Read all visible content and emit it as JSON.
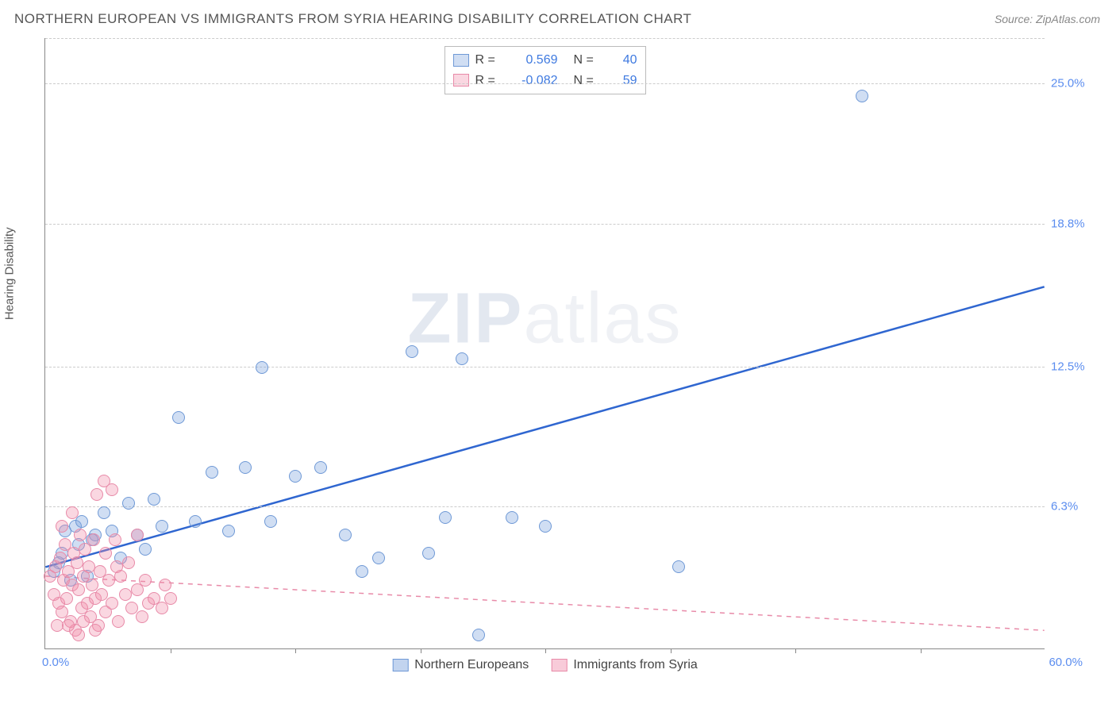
{
  "header": {
    "title": "NORTHERN EUROPEAN VS IMMIGRANTS FROM SYRIA HEARING DISABILITY CORRELATION CHART",
    "source": "Source: ZipAtlas.com"
  },
  "ylabel": "Hearing Disability",
  "watermark": {
    "z": "ZIP",
    "rest": "atlas"
  },
  "chart": {
    "type": "scatter",
    "xlim": [
      0,
      60
    ],
    "ylim": [
      0,
      27
    ],
    "background_color": "#ffffff",
    "grid_color": "#cccccc",
    "grid_dashed": true,
    "yticks": [
      {
        "v": 6.3,
        "label": "6.3%"
      },
      {
        "v": 12.5,
        "label": "12.5%"
      },
      {
        "v": 18.8,
        "label": "18.8%"
      },
      {
        "v": 25.0,
        "label": "25.0%"
      }
    ],
    "xticks_minor": [
      7.5,
      15,
      22.5,
      30,
      37.5,
      45,
      52.5
    ],
    "x_origin_label": "0.0%",
    "x_max_label": "60.0%",
    "ytick_color": "#5b8def",
    "xtick_color": "#5b8def",
    "marker_radius": 8,
    "marker_border_width": 1.5,
    "series": [
      {
        "name": "Northern Europeans",
        "fill": "rgba(120,160,220,0.35)",
        "stroke": "#6f99d6",
        "line_color": "#2f66d0",
        "line_dashed": false,
        "R": "0.569",
        "N": "40",
        "stat_color": "#3f7ae0",
        "trend": {
          "x1": 0,
          "y1": 3.6,
          "x2": 60,
          "y2": 16.0
        },
        "points": [
          [
            0.5,
            3.4
          ],
          [
            0.8,
            3.8
          ],
          [
            1.0,
            4.2
          ],
          [
            1.2,
            5.2
          ],
          [
            1.5,
            3.0
          ],
          [
            1.8,
            5.4
          ],
          [
            2.0,
            4.6
          ],
          [
            2.2,
            5.6
          ],
          [
            2.5,
            3.2
          ],
          [
            3.0,
            5.0
          ],
          [
            3.5,
            6.0
          ],
          [
            4.0,
            5.2
          ],
          [
            4.5,
            4.0
          ],
          [
            5.0,
            6.4
          ],
          [
            5.5,
            5.0
          ],
          [
            6.0,
            4.4
          ],
          [
            6.5,
            6.6
          ],
          [
            7.0,
            5.4
          ],
          [
            8.0,
            10.2
          ],
          [
            9.0,
            5.6
          ],
          [
            10.0,
            7.8
          ],
          [
            11.0,
            5.2
          ],
          [
            12.0,
            8.0
          ],
          [
            13.0,
            12.4
          ],
          [
            13.5,
            5.6
          ],
          [
            15.0,
            7.6
          ],
          [
            16.5,
            8.0
          ],
          [
            18.0,
            5.0
          ],
          [
            19.0,
            3.4
          ],
          [
            20.0,
            4.0
          ],
          [
            22.0,
            13.1
          ],
          [
            23.0,
            4.2
          ],
          [
            24.0,
            5.8
          ],
          [
            25.0,
            12.8
          ],
          [
            26.0,
            0.6
          ],
          [
            28.0,
            5.8
          ],
          [
            30.0,
            5.4
          ],
          [
            38.0,
            3.6
          ],
          [
            49.0,
            24.4
          ],
          [
            2.8,
            4.8
          ]
        ]
      },
      {
        "name": "Immigrants from Syria",
        "fill": "rgba(240,140,170,0.35)",
        "stroke": "#e88aa8",
        "line_color": "#e88aa8",
        "line_dashed": true,
        "R": "-0.082",
        "N": "59",
        "stat_color": "#3f7ae0",
        "trend": {
          "x1": 0,
          "y1": 3.2,
          "x2": 60,
          "y2": 0.8
        },
        "points": [
          [
            0.3,
            3.2
          ],
          [
            0.5,
            2.4
          ],
          [
            0.6,
            3.6
          ],
          [
            0.8,
            2.0
          ],
          [
            0.9,
            4.0
          ],
          [
            1.0,
            1.6
          ],
          [
            1.1,
            3.0
          ],
          [
            1.2,
            4.6
          ],
          [
            1.3,
            2.2
          ],
          [
            1.4,
            3.4
          ],
          [
            1.5,
            1.2
          ],
          [
            1.6,
            2.8
          ],
          [
            1.7,
            4.2
          ],
          [
            1.8,
            0.8
          ],
          [
            1.9,
            3.8
          ],
          [
            2.0,
            2.6
          ],
          [
            2.1,
            5.0
          ],
          [
            2.2,
            1.8
          ],
          [
            2.3,
            3.2
          ],
          [
            2.4,
            4.4
          ],
          [
            2.5,
            2.0
          ],
          [
            2.6,
            3.6
          ],
          [
            2.7,
            1.4
          ],
          [
            2.8,
            2.8
          ],
          [
            2.9,
            4.8
          ],
          [
            3.0,
            2.2
          ],
          [
            3.1,
            6.8
          ],
          [
            3.2,
            1.0
          ],
          [
            3.3,
            3.4
          ],
          [
            3.4,
            2.4
          ],
          [
            3.5,
            7.4
          ],
          [
            3.6,
            1.6
          ],
          [
            3.8,
            3.0
          ],
          [
            4.0,
            2.0
          ],
          [
            4.0,
            7.0
          ],
          [
            4.2,
            4.8
          ],
          [
            4.4,
            1.2
          ],
          [
            4.5,
            3.2
          ],
          [
            4.8,
            2.4
          ],
          [
            5.0,
            3.8
          ],
          [
            5.2,
            1.8
          ],
          [
            5.5,
            2.6
          ],
          [
            5.5,
            5.0
          ],
          [
            5.8,
            1.4
          ],
          [
            6.0,
            3.0
          ],
          [
            6.2,
            2.0
          ],
          [
            6.5,
            2.2
          ],
          [
            7.0,
            1.8
          ],
          [
            7.2,
            2.8
          ],
          [
            7.5,
            2.2
          ],
          [
            2.0,
            0.6
          ],
          [
            3.0,
            0.8
          ],
          [
            3.6,
            4.2
          ],
          [
            4.3,
            3.6
          ],
          [
            1.0,
            5.4
          ],
          [
            1.6,
            6.0
          ],
          [
            0.7,
            1.0
          ],
          [
            1.4,
            1.0
          ],
          [
            2.3,
            1.2
          ]
        ]
      }
    ]
  },
  "legend_top_labels": {
    "R": "R =",
    "N": "N ="
  },
  "legend_bottom": [
    {
      "label": "Northern Europeans",
      "swatch_fill": "rgba(120,160,220,0.45)",
      "swatch_border": "#6f99d6"
    },
    {
      "label": "Immigrants from Syria",
      "swatch_fill": "rgba(240,140,170,0.45)",
      "swatch_border": "#e88aa8"
    }
  ]
}
